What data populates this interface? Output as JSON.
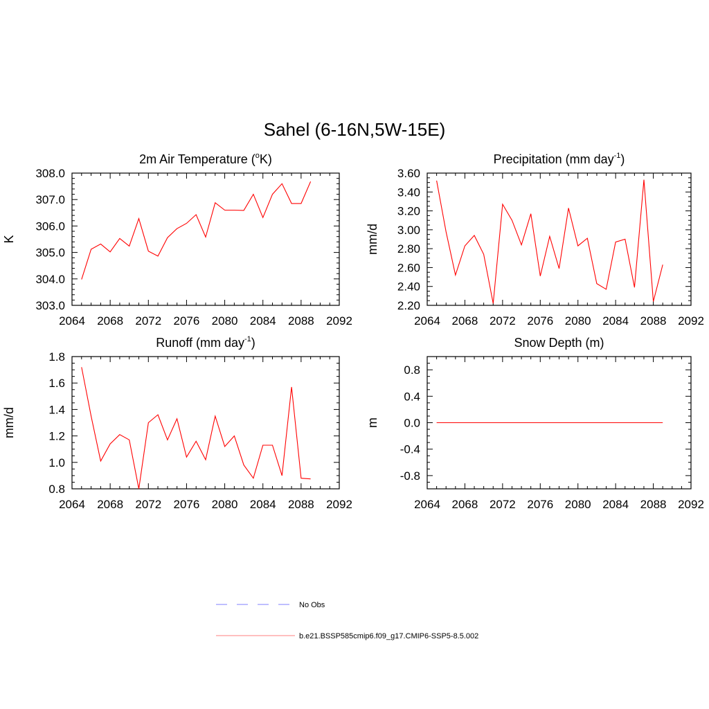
{
  "figure": {
    "title": "Sahel (6-16N,5W-15E)"
  },
  "legend": {
    "items": [
      {
        "label": "No Obs",
        "color": "#9999ff",
        "dash": true
      },
      {
        "label": "b.e21.BSSP585cmip6.f09_g17.CMIP6-SSP5-8.5.002",
        "color": "#ff9999",
        "dash": false
      }
    ]
  },
  "chart_data": [
    {
      "type": "line",
      "title": "2m Air Temperature (",
      "title_sup": "o",
      "title_tail": "K)",
      "ylabel": "K",
      "xlim": [
        2064,
        2092
      ],
      "ylim": [
        303.0,
        308.0
      ],
      "xticks": [
        "2064",
        "2068",
        "2072",
        "2076",
        "2080",
        "2084",
        "2088",
        "2092"
      ],
      "yticks": [
        "303.0",
        "304.0",
        "305.0",
        "306.0",
        "307.0",
        "308.0"
      ],
      "yminor": 0.2,
      "color": "#ff0000",
      "x": [
        2065,
        2066,
        2067,
        2068,
        2069,
        2070,
        2071,
        2072,
        2073,
        2074,
        2075,
        2076,
        2077,
        2078,
        2079,
        2080,
        2081,
        2082,
        2083,
        2084,
        2085,
        2086,
        2087,
        2088,
        2089
      ],
      "y": [
        303.98,
        305.12,
        305.32,
        305.02,
        305.53,
        305.24,
        306.28,
        305.05,
        304.86,
        305.56,
        305.9,
        306.1,
        306.43,
        305.58,
        306.88,
        306.6,
        306.6,
        306.59,
        307.2,
        306.32,
        307.2,
        307.6,
        306.85,
        306.85,
        307.68
      ]
    },
    {
      "type": "line",
      "title": "Precipitation (mm day",
      "title_sup": "-1",
      "title_tail": ")",
      "ylabel": "mm/d",
      "xlim": [
        2064,
        2092
      ],
      "ylim": [
        2.2,
        3.6
      ],
      "xticks": [
        "2064",
        "2068",
        "2072",
        "2076",
        "2080",
        "2084",
        "2088",
        "2092"
      ],
      "yticks": [
        "2.20",
        "2.40",
        "2.60",
        "2.80",
        "3.00",
        "3.20",
        "3.40",
        "3.60"
      ],
      "yminor": 0.05,
      "color": "#ff0000",
      "x": [
        2065,
        2066,
        2067,
        2068,
        2069,
        2070,
        2071,
        2072,
        2073,
        2074,
        2075,
        2076,
        2077,
        2078,
        2079,
        2080,
        2081,
        2082,
        2083,
        2084,
        2085,
        2086,
        2087,
        2088,
        2089
      ],
      "y": [
        3.52,
        2.98,
        2.52,
        2.83,
        2.94,
        2.74,
        2.22,
        3.27,
        3.1,
        2.84,
        3.17,
        2.51,
        2.93,
        2.59,
        3.23,
        2.83,
        2.91,
        2.43,
        2.37,
        2.87,
        2.9,
        2.39,
        3.53,
        2.24,
        2.63
      ]
    },
    {
      "type": "line",
      "title": "Runoff (mm day",
      "title_sup": "-1",
      "title_tail": ")",
      "ylabel": "mm/d",
      "xlim": [
        2064,
        2092
      ],
      "ylim": [
        0.8,
        1.8
      ],
      "xticks": [
        "2064",
        "2068",
        "2072",
        "2076",
        "2080",
        "2084",
        "2088",
        "2092"
      ],
      "yticks": [
        "0.8",
        "1.0",
        "1.2",
        "1.4",
        "1.6",
        "1.8"
      ],
      "yminor": 0.05,
      "color": "#ff0000",
      "x": [
        2065,
        2066,
        2067,
        2068,
        2069,
        2070,
        2071,
        2072,
        2073,
        2074,
        2075,
        2076,
        2077,
        2078,
        2079,
        2080,
        2081,
        2082,
        2083,
        2084,
        2085,
        2086,
        2087,
        2088,
        2089
      ],
      "y": [
        1.72,
        1.35,
        1.01,
        1.14,
        1.21,
        1.17,
        0.8,
        1.3,
        1.36,
        1.17,
        1.33,
        1.04,
        1.16,
        1.02,
        1.35,
        1.12,
        1.2,
        0.98,
        0.88,
        1.13,
        1.13,
        0.9,
        1.57,
        0.88,
        0.875
      ]
    },
    {
      "type": "line",
      "title": "Snow Depth (m)",
      "title_sup": "",
      "title_tail": "",
      "ylabel": "m",
      "xlim": [
        2064,
        2092
      ],
      "ylim": [
        -1.0,
        1.0
      ],
      "xticks": [
        "2064",
        "2068",
        "2072",
        "2076",
        "2080",
        "2084",
        "2088",
        "2092"
      ],
      "yticks": [
        "-0.8",
        "-0.4",
        "0.0",
        "0.4",
        "0.8"
      ],
      "ytick_values": [
        -0.8,
        -0.4,
        0.0,
        0.4,
        0.8
      ],
      "yminor": 0.1,
      "color": "#ff0000",
      "x": [
        2065,
        2089
      ],
      "y": [
        0.0,
        0.0
      ]
    }
  ]
}
